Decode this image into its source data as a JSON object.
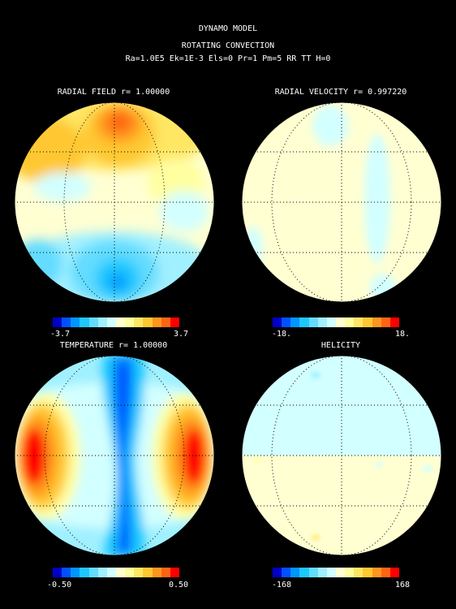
{
  "header": {
    "title": "DYNAMO MODEL",
    "subtitle": "ROTATING CONVECTION",
    "params": "Ra=1.0E5 Ek=1E-3 Els=0 Pr=1 Pm=5 RR TT H=0"
  },
  "panels": [
    {
      "title": "RADIAL FIELD r= 1.00000",
      "min_label": "-3.7",
      "max_label": "3.7"
    },
    {
      "title": "RADIAL VELOCITY r= 0.997220",
      "min_label": "-18.",
      "max_label": "18."
    },
    {
      "title": "TEMPERATURE r= 1.00000",
      "min_label": "-0.50",
      "max_label": "0.50"
    },
    {
      "title": "HELICITY",
      "min_label": "-168",
      "max_label": "168"
    }
  ],
  "colorbar_colors": [
    "#0000c8",
    "#0050ff",
    "#0096ff",
    "#1ec8ff",
    "#64dcff",
    "#a0f0ff",
    "#d2ffff",
    "#ffffd2",
    "#ffffa0",
    "#ffe664",
    "#ffc832",
    "#ff961e",
    "#ff6414",
    "#ff0000"
  ]
}
